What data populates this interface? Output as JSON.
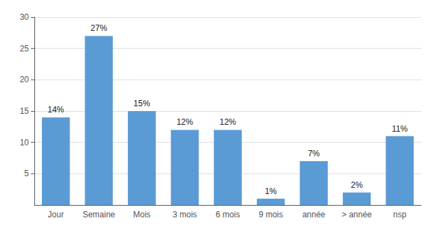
{
  "chart_data": {
    "type": "bar",
    "categories": [
      "Jour",
      "Semaine",
      "Mois",
      "3 mois",
      "6 mois",
      "9 mois",
      "année",
      "> année",
      "nsp"
    ],
    "values": [
      14,
      27,
      15,
      12,
      12,
      1,
      7,
      2,
      11
    ],
    "value_labels": [
      "14%",
      "27%",
      "15%",
      "12%",
      "12%",
      "1%",
      "7%",
      "2%",
      "11%"
    ],
    "data_labels": true,
    "color": "#5B9BD5",
    "ylim": [
      0,
      30
    ],
    "yticks": [
      5,
      10,
      15,
      20,
      25,
      30
    ],
    "grid": true
  }
}
